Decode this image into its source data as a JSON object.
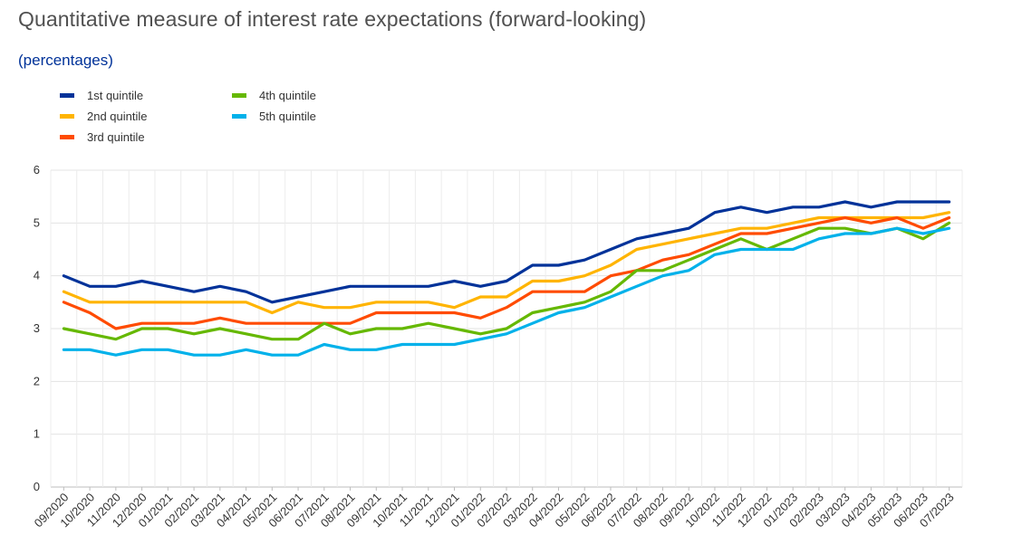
{
  "header": {
    "title": "Quantitative measure of interest rate expectations (forward-looking)",
    "subtitle": "(percentages)"
  },
  "chart_data": {
    "type": "line",
    "title": "Quantitative measure of interest rate expectations (forward-looking)",
    "subtitle": "(percentages)",
    "xlabel": "",
    "ylabel": "",
    "ylim": [
      0,
      6
    ],
    "yticks": [
      "0",
      "1",
      "2",
      "3",
      "4",
      "5",
      "6"
    ],
    "grid": true,
    "legend_position": "top-left",
    "x": [
      "09/2020",
      "10/2020",
      "11/2020",
      "12/2020",
      "01/2021",
      "02/2021",
      "03/2021",
      "04/2021",
      "05/2021",
      "06/2021",
      "07/2021",
      "08/2021",
      "09/2021",
      "10/2021",
      "11/2021",
      "12/2021",
      "01/2022",
      "02/2022",
      "03/2022",
      "04/2022",
      "05/2022",
      "06/2022",
      "07/2022",
      "08/2022",
      "09/2022",
      "10/2022",
      "11/2022",
      "12/2022",
      "01/2023",
      "02/2023",
      "03/2023",
      "04/2023",
      "05/2023",
      "06/2023",
      "07/2023"
    ],
    "series": [
      {
        "name": "1st quintile",
        "color": "#003299",
        "values": [
          4.0,
          3.8,
          3.8,
          3.9,
          3.8,
          3.7,
          3.8,
          3.7,
          3.5,
          3.6,
          3.7,
          3.8,
          3.8,
          3.8,
          3.8,
          3.9,
          3.8,
          3.9,
          4.2,
          4.2,
          4.3,
          4.5,
          4.7,
          4.8,
          4.9,
          5.2,
          5.3,
          5.2,
          5.3,
          5.3,
          5.4,
          5.3,
          5.4,
          5.4,
          5.4
        ]
      },
      {
        "name": "2nd quintile",
        "color": "#FFB400",
        "values": [
          3.7,
          3.5,
          3.5,
          3.5,
          3.5,
          3.5,
          3.5,
          3.5,
          3.3,
          3.5,
          3.4,
          3.4,
          3.5,
          3.5,
          3.5,
          3.4,
          3.6,
          3.6,
          3.9,
          3.9,
          4.0,
          4.2,
          4.5,
          4.6,
          4.7,
          4.8,
          4.9,
          4.9,
          5.0,
          5.1,
          5.1,
          5.1,
          5.1,
          5.1,
          5.2
        ]
      },
      {
        "name": "3rd quintile",
        "color": "#FF4B00",
        "values": [
          3.5,
          3.3,
          3.0,
          3.1,
          3.1,
          3.1,
          3.2,
          3.1,
          3.1,
          3.1,
          3.1,
          3.1,
          3.3,
          3.3,
          3.3,
          3.3,
          3.2,
          3.4,
          3.7,
          3.7,
          3.7,
          4.0,
          4.1,
          4.3,
          4.4,
          4.6,
          4.8,
          4.8,
          4.9,
          5.0,
          5.1,
          5.0,
          5.1,
          4.9,
          5.1
        ]
      },
      {
        "name": "4th quintile",
        "color": "#65B800",
        "values": [
          3.0,
          2.9,
          2.8,
          3.0,
          3.0,
          2.9,
          3.0,
          2.9,
          2.8,
          2.8,
          3.1,
          2.9,
          3.0,
          3.0,
          3.1,
          3.0,
          2.9,
          3.0,
          3.3,
          3.4,
          3.5,
          3.7,
          4.1,
          4.1,
          4.3,
          4.5,
          4.7,
          4.5,
          4.7,
          4.9,
          4.9,
          4.8,
          4.9,
          4.7,
          5.0
        ]
      },
      {
        "name": "5th quintile",
        "color": "#00B1EA",
        "values": [
          2.6,
          2.6,
          2.5,
          2.6,
          2.6,
          2.5,
          2.5,
          2.6,
          2.5,
          2.5,
          2.7,
          2.6,
          2.6,
          2.7,
          2.7,
          2.7,
          2.8,
          2.9,
          3.1,
          3.3,
          3.4,
          3.6,
          3.8,
          4.0,
          4.1,
          4.4,
          4.5,
          4.5,
          4.5,
          4.7,
          4.8,
          4.8,
          4.9,
          4.8,
          4.9
        ]
      }
    ]
  }
}
